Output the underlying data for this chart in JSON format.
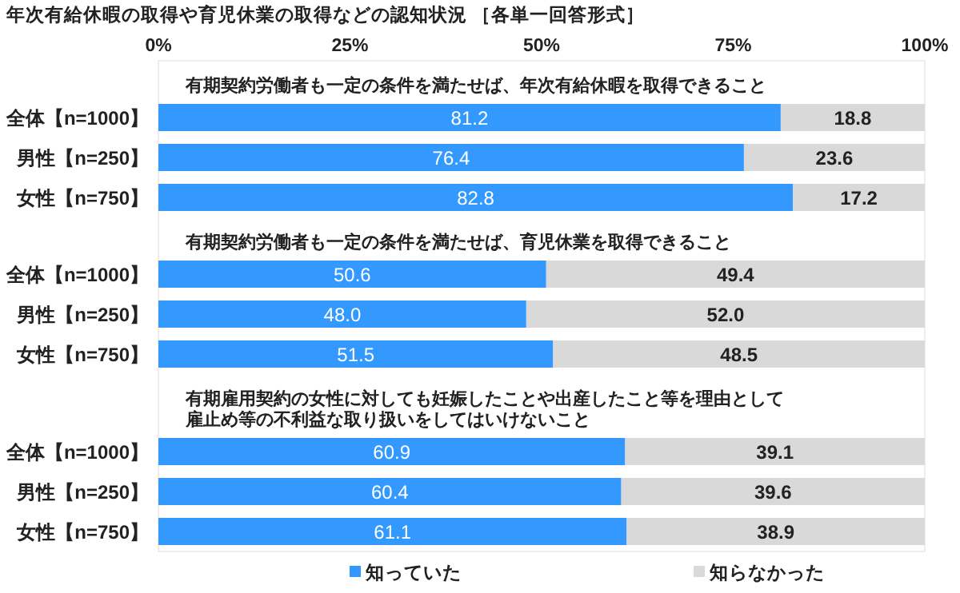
{
  "chart_data": {
    "type": "bar",
    "orientation": "horizontal",
    "stacked": true,
    "title": "年次有給休暇の取得や育児休業の取得などの認知状況 ［各単一回答形式］",
    "categories": [
      "全体【n=1000】",
      "男性【n=250】",
      "女性【n=750】",
      "全体【n=1000】",
      "男性【n=250】",
      "女性【n=750】",
      "全体【n=1000】",
      "男性【n=250】",
      "女性【n=750】"
    ],
    "series": [
      {
        "name": "知っていた",
        "color": "#3399ff",
        "values": [
          81.2,
          76.4,
          82.8,
          50.6,
          48.0,
          51.5,
          60.9,
          60.4,
          61.1
        ],
        "value_labels": [
          "81.2",
          "76.4",
          "82.8",
          "50.6",
          "48.0",
          "51.5",
          "60.9",
          "60.4",
          "61.1"
        ]
      },
      {
        "name": "知らなかった",
        "color": "#d9d9d9",
        "values": [
          18.8,
          23.6,
          17.2,
          49.4,
          52.0,
          48.5,
          39.1,
          39.6,
          38.9
        ],
        "value_labels": [
          "18.8",
          "23.6",
          "17.2",
          "49.4",
          "52.0",
          "48.5",
          "39.1",
          "39.6",
          "38.9"
        ]
      }
    ],
    "annotations": [
      "有期契約労働者も一定の条件を満たせば、年次有給休暇を取得できること",
      "有期契約労働者も一定の条件を満たせば、育児休業を取得できること",
      "有期雇用契約の女性に対しても妊娠したことや出産したこと等を理由として雇止め等の不利益な取り扱いをしてはいけないこと"
    ],
    "xlim": [
      0,
      100
    ],
    "xticks": [
      {
        "value": 0,
        "label": "0%"
      },
      {
        "value": 25,
        "label": "25%"
      },
      {
        "value": 50,
        "label": "50%"
      },
      {
        "value": 75,
        "label": "75%"
      },
      {
        "value": 100,
        "label": "100%"
      }
    ],
    "legend": "bottom",
    "grid": false
  }
}
